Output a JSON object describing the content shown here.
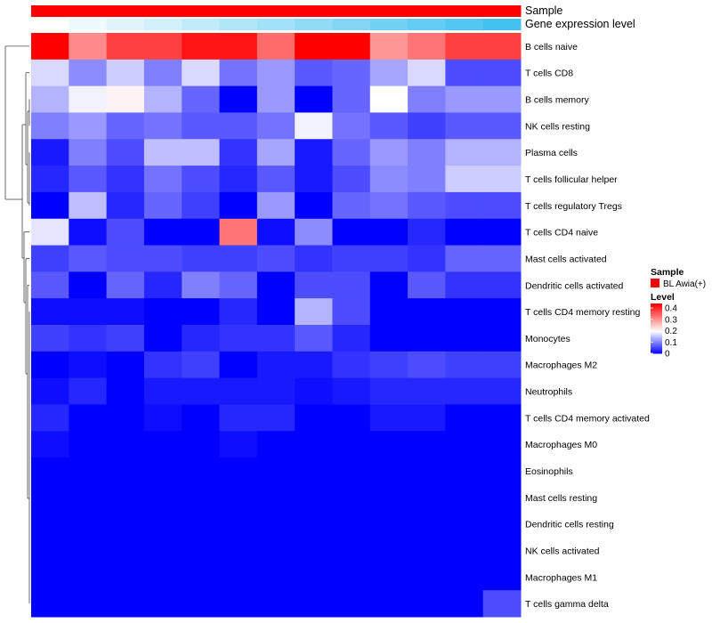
{
  "chart_data": {
    "type": "heatmap",
    "annotation_tracks": [
      {
        "name": "Sample"
      },
      {
        "name": "Gene expression level"
      }
    ],
    "annotation_colors": {
      "sample": "#ff0000",
      "expression_gradient": [
        "#ffffff",
        "#44c2ef"
      ]
    },
    "rows": [
      "B cells naive",
      "T cells CD8",
      "B cells memory",
      "NK cells resting",
      "Plasma cells",
      "T cells follicular helper",
      "T cells regulatory  Tregs",
      "T cells CD4 naive",
      "Mast cells activated",
      "Dendritic cells activated",
      "T cells CD4 memory resting",
      "Monocytes",
      "Macrophages M2",
      "Neutrophils",
      "T cells CD4 memory activated",
      "Macrophages M0",
      "Eosinophils",
      "Mast cells resting",
      "Dendritic cells resting",
      "NK cells activated",
      "Macrophages M1",
      "T cells gamma delta"
    ],
    "n_columns": 13,
    "values": [
      [
        0.44,
        0.31,
        0.38,
        0.38,
        0.42,
        0.42,
        0.34,
        0.44,
        0.44,
        0.3,
        0.33,
        0.38,
        0.38
      ],
      [
        0.17,
        0.11,
        0.16,
        0.1,
        0.17,
        0.09,
        0.12,
        0.07,
        0.08,
        0.13,
        0.17,
        0.06,
        0.06
      ],
      [
        0.14,
        0.19,
        0.21,
        0.14,
        0.08,
        0.0,
        0.12,
        0.0,
        0.08,
        0.2,
        0.1,
        0.12,
        0.12
      ],
      [
        0.1,
        0.12,
        0.08,
        0.09,
        0.07,
        0.07,
        0.09,
        0.19,
        0.09,
        0.07,
        0.05,
        0.07,
        0.07
      ],
      [
        0.02,
        0.1,
        0.06,
        0.15,
        0.15,
        0.04,
        0.13,
        0.02,
        0.08,
        0.12,
        0.1,
        0.14,
        0.14
      ],
      [
        0.03,
        0.07,
        0.04,
        0.09,
        0.06,
        0.03,
        0.07,
        0.02,
        0.06,
        0.11,
        0.1,
        0.16,
        0.16
      ],
      [
        0.0,
        0.15,
        0.03,
        0.08,
        0.05,
        0.0,
        0.12,
        0.0,
        0.08,
        0.09,
        0.07,
        0.06,
        0.06
      ],
      [
        0.18,
        0.01,
        0.06,
        0.0,
        0.0,
        0.33,
        0.01,
        0.11,
        0.0,
        0.0,
        0.03,
        0.0,
        0.0
      ],
      [
        0.05,
        0.07,
        0.06,
        0.06,
        0.05,
        0.05,
        0.06,
        0.04,
        0.05,
        0.05,
        0.04,
        0.08,
        0.08
      ],
      [
        0.07,
        0.0,
        0.08,
        0.03,
        0.1,
        0.08,
        0.0,
        0.06,
        0.06,
        0.0,
        0.07,
        0.04,
        0.04
      ],
      [
        0.01,
        0.01,
        0.01,
        0.0,
        0.0,
        0.03,
        0.0,
        0.14,
        0.06,
        0.0,
        0.0,
        0.0,
        0.0
      ],
      [
        0.05,
        0.04,
        0.05,
        0.0,
        0.03,
        0.04,
        0.04,
        0.07,
        0.03,
        0.0,
        0.0,
        0.0,
        0.0
      ],
      [
        0.0,
        0.01,
        0.0,
        0.04,
        0.05,
        0.0,
        0.02,
        0.02,
        0.04,
        0.05,
        0.06,
        0.05,
        0.05
      ],
      [
        0.01,
        0.03,
        0.0,
        0.02,
        0.02,
        0.02,
        0.02,
        0.01,
        0.02,
        0.03,
        0.03,
        0.03,
        0.03
      ],
      [
        0.03,
        0.0,
        0.0,
        0.01,
        0.0,
        0.03,
        0.03,
        0.0,
        0.0,
        0.02,
        0.02,
        0.0,
        0.0
      ],
      [
        0.01,
        0.0,
        0.0,
        0.0,
        0.0,
        0.01,
        0.0,
        0.0,
        0.0,
        0.0,
        0.0,
        0.0,
        0.0
      ],
      [
        0.0,
        0.0,
        0.0,
        0.0,
        0.0,
        0.0,
        0.0,
        0.0,
        0.0,
        0.0,
        0.0,
        0.0,
        0.0
      ],
      [
        0.0,
        0.0,
        0.0,
        0.0,
        0.0,
        0.0,
        0.0,
        0.0,
        0.0,
        0.0,
        0.0,
        0.0,
        0.0
      ],
      [
        0.0,
        0.0,
        0.0,
        0.0,
        0.0,
        0.0,
        0.0,
        0.0,
        0.0,
        0.0,
        0.0,
        0.0,
        0.0
      ],
      [
        0.0,
        0.0,
        0.0,
        0.0,
        0.0,
        0.0,
        0.0,
        0.0,
        0.0,
        0.0,
        0.0,
        0.0,
        0.0
      ],
      [
        0.0,
        0.0,
        0.0,
        0.0,
        0.0,
        0.0,
        0.0,
        0.0,
        0.0,
        0.0,
        0.0,
        0.0,
        0.0
      ],
      [
        0.0,
        0.0,
        0.0,
        0.0,
        0.0,
        0.0,
        0.0,
        0.0,
        0.0,
        0.0,
        0.0,
        0.0,
        0.06
      ]
    ],
    "color_scale": {
      "stops": [
        {
          "value": 0.0,
          "color": "#0000ff"
        },
        {
          "value": 0.2,
          "color": "#ffffff"
        },
        {
          "value": 0.44,
          "color": "#ff0000"
        }
      ]
    },
    "legend": {
      "position": "right",
      "sample_title": "Sample",
      "sample_entry": "BL Awia(+)",
      "level_title": "Level",
      "ticks": [
        "0.4",
        "0.3",
        "0.2",
        "0.1",
        "0"
      ],
      "tick_values": [
        0.4,
        0.3,
        0.2,
        0.1,
        0.0
      ]
    },
    "row_dendrogram": "left",
    "grid": false
  }
}
